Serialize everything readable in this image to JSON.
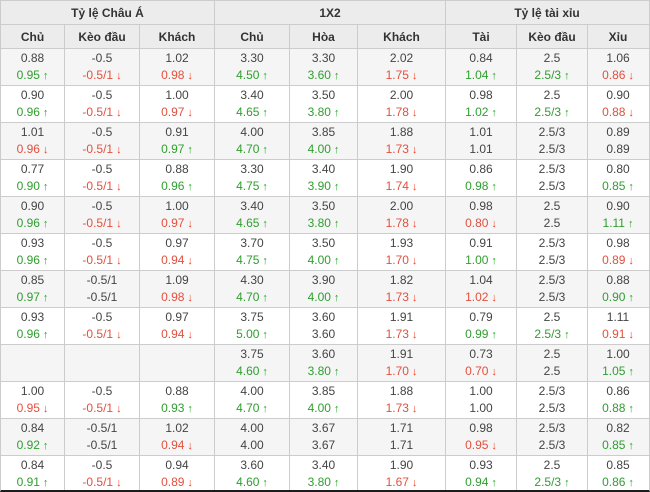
{
  "header": {
    "groups": [
      {
        "label": "Tỷ lệ Châu Á"
      },
      {
        "label": "1X2"
      },
      {
        "label": "Tỷ lệ tài xỉu"
      }
    ],
    "columns": [
      "Chủ",
      "Kèo đầu",
      "Khách",
      "Chủ",
      "Hòa",
      "Khách",
      "Tài",
      "Kèo đầu",
      "Xỉu"
    ]
  },
  "icons": {
    "arrow_up": "↑",
    "arrow_down": "↓"
  },
  "colors": {
    "up_green": "#2f9e2f",
    "arrow_green": "#28a828",
    "down_red": "#e2503f",
    "arrow_red": "#f23d1f",
    "header_bg": "#ececec",
    "row_alt_bg": "#f5f5f5",
    "border": "#cccccc"
  },
  "rows": [
    {
      "cells": [
        {
          "top": "0.88",
          "bottom": "0.95",
          "trend": "up"
        },
        {
          "top": "-0.5",
          "bottom": "-0.5/1",
          "trend": "down"
        },
        {
          "top": "1.02",
          "bottom": "0.98",
          "trend": "down"
        },
        {
          "top": "3.30",
          "bottom": "4.50",
          "trend": "up"
        },
        {
          "top": "3.30",
          "bottom": "3.60",
          "trend": "up"
        },
        {
          "top": "2.02",
          "bottom": "1.75",
          "trend": "down"
        },
        {
          "top": "0.84",
          "bottom": "1.04",
          "trend": "up"
        },
        {
          "top": "2.5",
          "bottom": "2.5/3",
          "trend": "up"
        },
        {
          "top": "1.06",
          "bottom": "0.86",
          "trend": "down"
        }
      ]
    },
    {
      "cells": [
        {
          "top": "0.90",
          "bottom": "0.96",
          "trend": "up"
        },
        {
          "top": "-0.5",
          "bottom": "-0.5/1",
          "trend": "down"
        },
        {
          "top": "1.00",
          "bottom": "0.97",
          "trend": "down"
        },
        {
          "top": "3.40",
          "bottom": "4.65",
          "trend": "up"
        },
        {
          "top": "3.50",
          "bottom": "3.80",
          "trend": "up"
        },
        {
          "top": "2.00",
          "bottom": "1.78",
          "trend": "down"
        },
        {
          "top": "0.98",
          "bottom": "1.02",
          "trend": "up"
        },
        {
          "top": "2.5",
          "bottom": "2.5/3",
          "trend": "up"
        },
        {
          "top": "0.90",
          "bottom": "0.88",
          "trend": "down"
        }
      ]
    },
    {
      "cells": [
        {
          "top": "1.01",
          "bottom": "0.96",
          "trend": "down"
        },
        {
          "top": "-0.5",
          "bottom": "-0.5/1",
          "trend": "down"
        },
        {
          "top": "0.91",
          "bottom": "0.97",
          "trend": "up"
        },
        {
          "top": "4.00",
          "bottom": "4.70",
          "trend": "up"
        },
        {
          "top": "3.85",
          "bottom": "4.00",
          "trend": "up"
        },
        {
          "top": "1.88",
          "bottom": "1.73",
          "trend": "down"
        },
        {
          "top": "1.01",
          "bottom": "1.01",
          "trend": "flat"
        },
        {
          "top": "2.5/3",
          "bottom": "2.5/3",
          "trend": "flat"
        },
        {
          "top": "0.89",
          "bottom": "0.89",
          "trend": "flat"
        }
      ]
    },
    {
      "cells": [
        {
          "top": "0.77",
          "bottom": "0.90",
          "trend": "up"
        },
        {
          "top": "-0.5",
          "bottom": "-0.5/1",
          "trend": "down"
        },
        {
          "top": "0.88",
          "bottom": "0.96",
          "trend": "up"
        },
        {
          "top": "3.30",
          "bottom": "4.75",
          "trend": "up"
        },
        {
          "top": "3.40",
          "bottom": "3.90",
          "trend": "up"
        },
        {
          "top": "1.90",
          "bottom": "1.74",
          "trend": "down"
        },
        {
          "top": "0.86",
          "bottom": "0.98",
          "trend": "up"
        },
        {
          "top": "2.5/3",
          "bottom": "2.5/3",
          "trend": "flat"
        },
        {
          "top": "0.80",
          "bottom": "0.85",
          "trend": "up"
        }
      ]
    },
    {
      "cells": [
        {
          "top": "0.90",
          "bottom": "0.96",
          "trend": "up"
        },
        {
          "top": "-0.5",
          "bottom": "-0.5/1",
          "trend": "down"
        },
        {
          "top": "1.00",
          "bottom": "0.97",
          "trend": "down"
        },
        {
          "top": "3.40",
          "bottom": "4.65",
          "trend": "up"
        },
        {
          "top": "3.50",
          "bottom": "3.80",
          "trend": "up"
        },
        {
          "top": "2.00",
          "bottom": "1.78",
          "trend": "down"
        },
        {
          "top": "0.98",
          "bottom": "0.80",
          "trend": "down"
        },
        {
          "top": "2.5",
          "bottom": "2.5",
          "trend": "flat"
        },
        {
          "top": "0.90",
          "bottom": "1.11",
          "trend": "up"
        }
      ]
    },
    {
      "cells": [
        {
          "top": "0.93",
          "bottom": "0.96",
          "trend": "up"
        },
        {
          "top": "-0.5",
          "bottom": "-0.5/1",
          "trend": "down"
        },
        {
          "top": "0.97",
          "bottom": "0.94",
          "trend": "down"
        },
        {
          "top": "3.70",
          "bottom": "4.75",
          "trend": "up"
        },
        {
          "top": "3.50",
          "bottom": "4.00",
          "trend": "up"
        },
        {
          "top": "1.93",
          "bottom": "1.70",
          "trend": "down"
        },
        {
          "top": "0.91",
          "bottom": "1.00",
          "trend": "up"
        },
        {
          "top": "2.5/3",
          "bottom": "2.5/3",
          "trend": "flat"
        },
        {
          "top": "0.98",
          "bottom": "0.89",
          "trend": "down"
        }
      ]
    },
    {
      "cells": [
        {
          "top": "0.85",
          "bottom": "0.97",
          "trend": "up"
        },
        {
          "top": "-0.5/1",
          "bottom": "-0.5/1",
          "trend": "flat"
        },
        {
          "top": "1.09",
          "bottom": "0.98",
          "trend": "down"
        },
        {
          "top": "4.30",
          "bottom": "4.70",
          "trend": "up"
        },
        {
          "top": "3.90",
          "bottom": "4.00",
          "trend": "up"
        },
        {
          "top": "1.82",
          "bottom": "1.73",
          "trend": "down"
        },
        {
          "top": "1.04",
          "bottom": "1.02",
          "trend": "down"
        },
        {
          "top": "2.5/3",
          "bottom": "2.5/3",
          "trend": "flat"
        },
        {
          "top": "0.88",
          "bottom": "0.90",
          "trend": "up"
        }
      ]
    },
    {
      "cells": [
        {
          "top": "0.93",
          "bottom": "0.96",
          "trend": "up"
        },
        {
          "top": "-0.5",
          "bottom": "-0.5/1",
          "trend": "down"
        },
        {
          "top": "0.97",
          "bottom": "0.94",
          "trend": "down"
        },
        {
          "top": "3.75",
          "bottom": "5.00",
          "trend": "up"
        },
        {
          "top": "3.60",
          "bottom": "3.60",
          "trend": "flat"
        },
        {
          "top": "1.91",
          "bottom": "1.73",
          "trend": "down"
        },
        {
          "top": "0.79",
          "bottom": "0.99",
          "trend": "up"
        },
        {
          "top": "2.5",
          "bottom": "2.5/3",
          "trend": "up"
        },
        {
          "top": "1.11",
          "bottom": "0.91",
          "trend": "down"
        }
      ]
    },
    {
      "cells": [
        {
          "top": "",
          "bottom": "",
          "trend": "flat"
        },
        {
          "top": "",
          "bottom": "",
          "trend": "flat"
        },
        {
          "top": "",
          "bottom": "",
          "trend": "flat"
        },
        {
          "top": "3.75",
          "bottom": "4.60",
          "trend": "up"
        },
        {
          "top": "3.60",
          "bottom": "3.80",
          "trend": "up"
        },
        {
          "top": "1.91",
          "bottom": "1.70",
          "trend": "down"
        },
        {
          "top": "0.73",
          "bottom": "0.70",
          "trend": "down"
        },
        {
          "top": "2.5",
          "bottom": "2.5",
          "trend": "flat"
        },
        {
          "top": "1.00",
          "bottom": "1.05",
          "trend": "up"
        }
      ]
    },
    {
      "cells": [
        {
          "top": "1.00",
          "bottom": "0.95",
          "trend": "down"
        },
        {
          "top": "-0.5",
          "bottom": "-0.5/1",
          "trend": "down"
        },
        {
          "top": "0.88",
          "bottom": "0.93",
          "trend": "up"
        },
        {
          "top": "4.00",
          "bottom": "4.70",
          "trend": "up"
        },
        {
          "top": "3.85",
          "bottom": "4.00",
          "trend": "up"
        },
        {
          "top": "1.88",
          "bottom": "1.73",
          "trend": "down"
        },
        {
          "top": "1.00",
          "bottom": "1.00",
          "trend": "flat"
        },
        {
          "top": "2.5/3",
          "bottom": "2.5/3",
          "trend": "flat"
        },
        {
          "top": "0.86",
          "bottom": "0.88",
          "trend": "up"
        }
      ]
    },
    {
      "cells": [
        {
          "top": "0.84",
          "bottom": "0.92",
          "trend": "up"
        },
        {
          "top": "-0.5/1",
          "bottom": "-0.5/1",
          "trend": "flat"
        },
        {
          "top": "1.02",
          "bottom": "0.94",
          "trend": "down"
        },
        {
          "top": "4.00",
          "bottom": "4.00",
          "trend": "flat"
        },
        {
          "top": "3.67",
          "bottom": "3.67",
          "trend": "flat"
        },
        {
          "top": "1.71",
          "bottom": "1.71",
          "trend": "flat"
        },
        {
          "top": "0.98",
          "bottom": "0.95",
          "trend": "down"
        },
        {
          "top": "2.5/3",
          "bottom": "2.5/3",
          "trend": "flat"
        },
        {
          "top": "0.82",
          "bottom": "0.85",
          "trend": "up"
        }
      ]
    },
    {
      "cells": [
        {
          "top": "0.84",
          "bottom": "0.91",
          "trend": "up"
        },
        {
          "top": "-0.5",
          "bottom": "-0.5/1",
          "trend": "down"
        },
        {
          "top": "0.94",
          "bottom": "0.89",
          "trend": "down"
        },
        {
          "top": "3.60",
          "bottom": "4.60",
          "trend": "up"
        },
        {
          "top": "3.40",
          "bottom": "3.80",
          "trend": "up"
        },
        {
          "top": "1.90",
          "bottom": "1.67",
          "trend": "down"
        },
        {
          "top": "0.93",
          "bottom": "0.94",
          "trend": "up"
        },
        {
          "top": "2.5",
          "bottom": "2.5/3",
          "trend": "up"
        },
        {
          "top": "0.85",
          "bottom": "0.86",
          "trend": "up"
        }
      ]
    }
  ]
}
